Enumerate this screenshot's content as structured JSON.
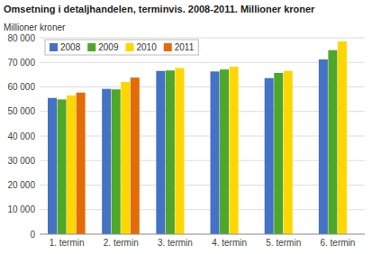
{
  "chart_data": {
    "type": "bar",
    "title": "Omsetning i detaljhandelen, terminvis. 2008-2011. Millioner kroner",
    "y_label": "Millioner kroner",
    "categories": [
      "1. termin",
      "2. termin",
      "3. termin",
      "4. termin",
      "5. termin",
      "6. termin"
    ],
    "series": [
      {
        "name": "2008",
        "color": "#4472C4",
        "values": [
          55500,
          59200,
          66500,
          66300,
          63600,
          71200
        ]
      },
      {
        "name": "2009",
        "color": "#4EA72A",
        "values": [
          54900,
          59000,
          66700,
          67100,
          65700,
          75000
        ]
      },
      {
        "name": "2010",
        "color": "#FFD700",
        "values": [
          56500,
          62000,
          67700,
          68200,
          66500,
          78500
        ]
      },
      {
        "name": "2011",
        "color": "#E36C09",
        "values": [
          57700,
          63800,
          null,
          null,
          null,
          null
        ]
      }
    ],
    "ylim": [
      0,
      80000
    ],
    "yticks": [
      0,
      {
        "value": 10000,
        "label": "10 000"
      },
      {
        "value": 20000,
        "label": "20 000"
      },
      {
        "value": 30000,
        "label": "30 000"
      },
      {
        "value": 40000,
        "label": "40 000"
      },
      {
        "value": 50000,
        "label": "50 000"
      },
      {
        "value": 60000,
        "label": "60 000"
      },
      {
        "value": 70000,
        "label": "70 000"
      },
      {
        "value": 80000,
        "label": "80 000"
      }
    ],
    "grid": true,
    "legend": "upper left"
  }
}
